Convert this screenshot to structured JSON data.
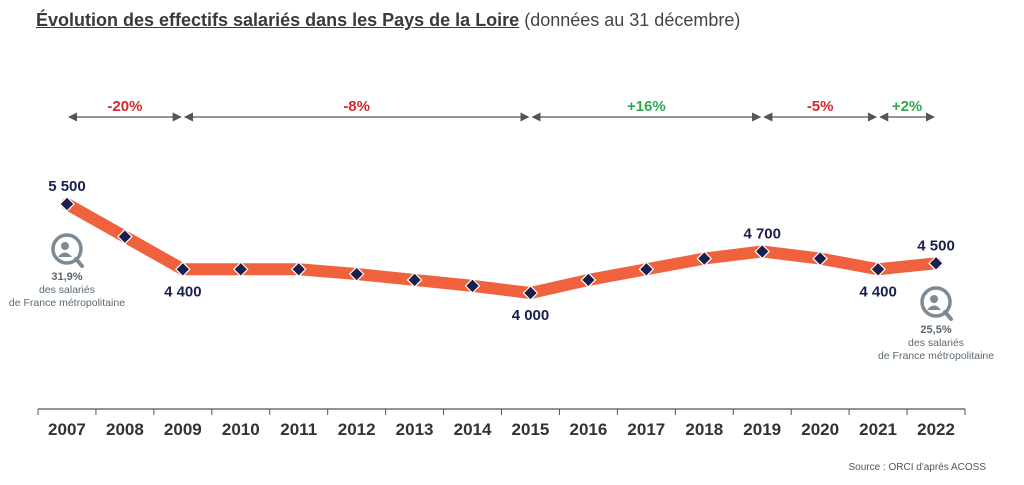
{
  "title": {
    "main": "Évolution des effectifs salariés dans les Pays de la Loire",
    "sub": " (données au 31 décembre)"
  },
  "source": "Source : ORCI d'après ACOSS",
  "colors": {
    "line": "#f0623e",
    "marker": "#1a1f4e",
    "negative": "#d9262c",
    "positive": "#2eaa4a",
    "axis": "#555555",
    "badge": "#7d8a94"
  },
  "chart_data": {
    "type": "line",
    "x": [
      "2007",
      "2008",
      "2009",
      "2010",
      "2011",
      "2012",
      "2013",
      "2014",
      "2015",
      "2016",
      "2017",
      "2018",
      "2019",
      "2020",
      "2021",
      "2022"
    ],
    "values": [
      5500,
      4950,
      4400,
      4400,
      4400,
      4320,
      4220,
      4120,
      4000,
      4220,
      4400,
      4580,
      4700,
      4580,
      4400,
      4500
    ],
    "data_labels": [
      {
        "index": 0,
        "text": "5 500",
        "pos": "above"
      },
      {
        "index": 2,
        "text": "4 400",
        "pos": "below"
      },
      {
        "index": 8,
        "text": "4 000",
        "pos": "below"
      },
      {
        "index": 12,
        "text": "4 700",
        "pos": "above"
      },
      {
        "index": 14,
        "text": "4 400",
        "pos": "below"
      },
      {
        "index": 15,
        "text": "4 500",
        "pos": "above"
      }
    ],
    "periods": [
      {
        "from": 0,
        "to": 2,
        "label": "-20%",
        "sign": "negative"
      },
      {
        "from": 2,
        "to": 8,
        "label": "-8%",
        "sign": "negative"
      },
      {
        "from": 8,
        "to": 12,
        "label": "+16%",
        "sign": "positive"
      },
      {
        "from": 12,
        "to": 14,
        "label": "-5%",
        "sign": "negative"
      },
      {
        "from": 14,
        "to": 15,
        "label": "+2%",
        "sign": "positive"
      }
    ],
    "badges": [
      {
        "index": 0,
        "lines": [
          "31,9%",
          "des salariés",
          "de France métropolitaine"
        ],
        "icon": "magnifier-person-icon"
      },
      {
        "index": 15,
        "lines": [
          "25,5%",
          "des salariés",
          "de France métropolitaine"
        ],
        "icon": "magnifier-person-icon"
      }
    ],
    "ylim": [
      3700,
      6200
    ],
    "grid": false,
    "legend": "none"
  }
}
